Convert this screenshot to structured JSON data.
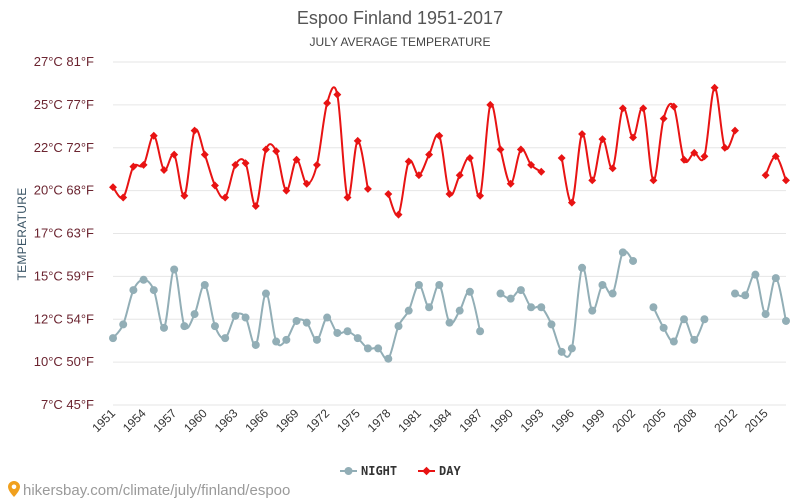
{
  "chart_data": {
    "type": "line",
    "title": "Espoo Finland 1951-2017",
    "subtitle": "JULY AVERAGE TEMPERATURE",
    "ylabel": "TEMPERATURE",
    "yticks": [
      "7°C 45°F",
      "10°C 50°F",
      "12°C 54°F",
      "15°C 59°F",
      "17°C 63°F",
      "20°C 68°F",
      "22°C 72°F",
      "25°C 77°F",
      "27°C 81°F"
    ],
    "ylim": [
      7.2,
      27.2
    ],
    "xlim": [
      1951,
      2017
    ],
    "xticks": [
      1951,
      1954,
      1957,
      1960,
      1963,
      1966,
      1969,
      1972,
      1975,
      1978,
      1981,
      1984,
      1987,
      1990,
      1993,
      1996,
      1999,
      2002,
      2005,
      2008,
      2012,
      2015
    ],
    "grid": true,
    "legend_position": "bottom-center",
    "x": [
      1951,
      1952,
      1953,
      1954,
      1955,
      1956,
      1957,
      1958,
      1959,
      1960,
      1961,
      1962,
      1963,
      1964,
      1965,
      1966,
      1967,
      1968,
      1969,
      1970,
      1971,
      1972,
      1973,
      1974,
      1975,
      1976,
      1977,
      1978,
      1979,
      1980,
      1981,
      1982,
      1983,
      1984,
      1985,
      1986,
      1987,
      1988,
      1989,
      1990,
      1991,
      1992,
      1993,
      1994,
      1995,
      1996,
      1997,
      1998,
      1999,
      2000,
      2001,
      2002,
      2003,
      2004,
      2005,
      2006,
      2007,
      2008,
      2009,
      2010,
      2011,
      2012,
      2013,
      2014,
      2015,
      2016,
      2017
    ],
    "series": [
      {
        "name": "NIGHT",
        "color": "#92aeb6",
        "values": [
          11.1,
          11.9,
          13.9,
          14.5,
          13.9,
          11.7,
          15.1,
          11.8,
          12.5,
          14.2,
          11.8,
          11.1,
          12.4,
          12.3,
          10.7,
          13.7,
          10.9,
          11.0,
          12.1,
          12.0,
          11.0,
          12.3,
          11.4,
          11.5,
          11.1,
          10.5,
          10.5,
          9.9,
          11.8,
          12.7,
          14.2,
          12.9,
          14.2,
          12.0,
          12.7,
          13.8,
          11.5,
          null,
          13.7,
          13.4,
          13.9,
          12.9,
          12.9,
          11.9,
          10.3,
          10.5,
          15.2,
          12.7,
          14.2,
          13.7,
          16.1,
          15.6,
          null,
          12.9,
          11.7,
          10.9,
          12.2,
          11.0,
          12.2,
          null,
          null,
          13.7,
          13.6,
          14.8,
          12.5,
          14.6,
          12.1
        ]
      },
      {
        "name": "DAY",
        "color": "#e81313",
        "values": [
          19.9,
          19.3,
          21.1,
          21.2,
          22.9,
          20.9,
          21.8,
          19.4,
          23.2,
          21.8,
          20.0,
          19.3,
          21.2,
          21.3,
          18.8,
          22.1,
          22.0,
          19.7,
          21.5,
          20.1,
          21.2,
          24.8,
          25.3,
          19.3,
          22.6,
          19.8,
          null,
          19.5,
          18.3,
          21.4,
          20.6,
          21.8,
          22.9,
          19.5,
          20.6,
          21.6,
          19.4,
          24.7,
          22.1,
          20.1,
          22.1,
          21.2,
          20.8,
          null,
          21.6,
          19.0,
          23.0,
          20.3,
          22.7,
          21.0,
          24.5,
          22.8,
          24.5,
          20.3,
          23.9,
          24.6,
          21.5,
          21.9,
          21.7,
          25.7,
          22.2,
          23.2,
          null,
          null,
          20.6,
          21.7,
          20.3
        ]
      }
    ]
  },
  "source_text": "hikersbay.com/climate/july/finland/espoo"
}
